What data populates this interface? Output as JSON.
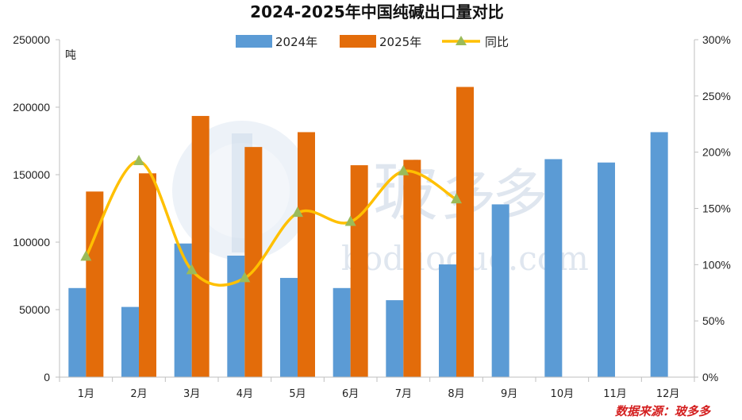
{
  "source_note": "数据来源：玻多多",
  "colors": {
    "series_2024": "#5b9bd5",
    "series_2025": "#e36c0a",
    "yoy_line": "#ffc000",
    "yoy_marker": "#9bbb59",
    "axis": "#bfbfbf",
    "source_text": "#d42020"
  },
  "chart_data": {
    "type": "bar",
    "title": "2024-2025年中国纯碱出口量对比",
    "ylabel": "吨",
    "ylim": [
      0,
      250000
    ],
    "y_ticks": [
      0,
      50000,
      100000,
      150000,
      200000,
      250000
    ],
    "y2lim": [
      0,
      3
    ],
    "y2_ticks": [
      "0%",
      "50%",
      "100%",
      "150%",
      "200%",
      "250%",
      "300%"
    ],
    "legend_position": "top-center",
    "grid": false,
    "categories": [
      "1月",
      "2月",
      "3月",
      "4月",
      "5月",
      "6月",
      "7月",
      "8月",
      "9月",
      "10月",
      "11月",
      "12月"
    ],
    "series": [
      {
        "name": "2024年",
        "type": "bar",
        "axis": "left",
        "values": [
          66000,
          52000,
          99000,
          90000,
          73500,
          66000,
          57000,
          83500,
          128000,
          161500,
          159000,
          181500
        ]
      },
      {
        "name": "2025年",
        "type": "bar",
        "axis": "left",
        "values": [
          137500,
          151000,
          193500,
          170500,
          181500,
          157000,
          161000,
          215000,
          null,
          null,
          null,
          null
        ]
      },
      {
        "name": "同比",
        "type": "line",
        "axis": "right",
        "values": [
          1.07,
          1.92,
          0.95,
          0.88,
          1.46,
          1.38,
          1.83,
          1.58,
          null,
          null,
          null,
          null
        ]
      }
    ]
  }
}
